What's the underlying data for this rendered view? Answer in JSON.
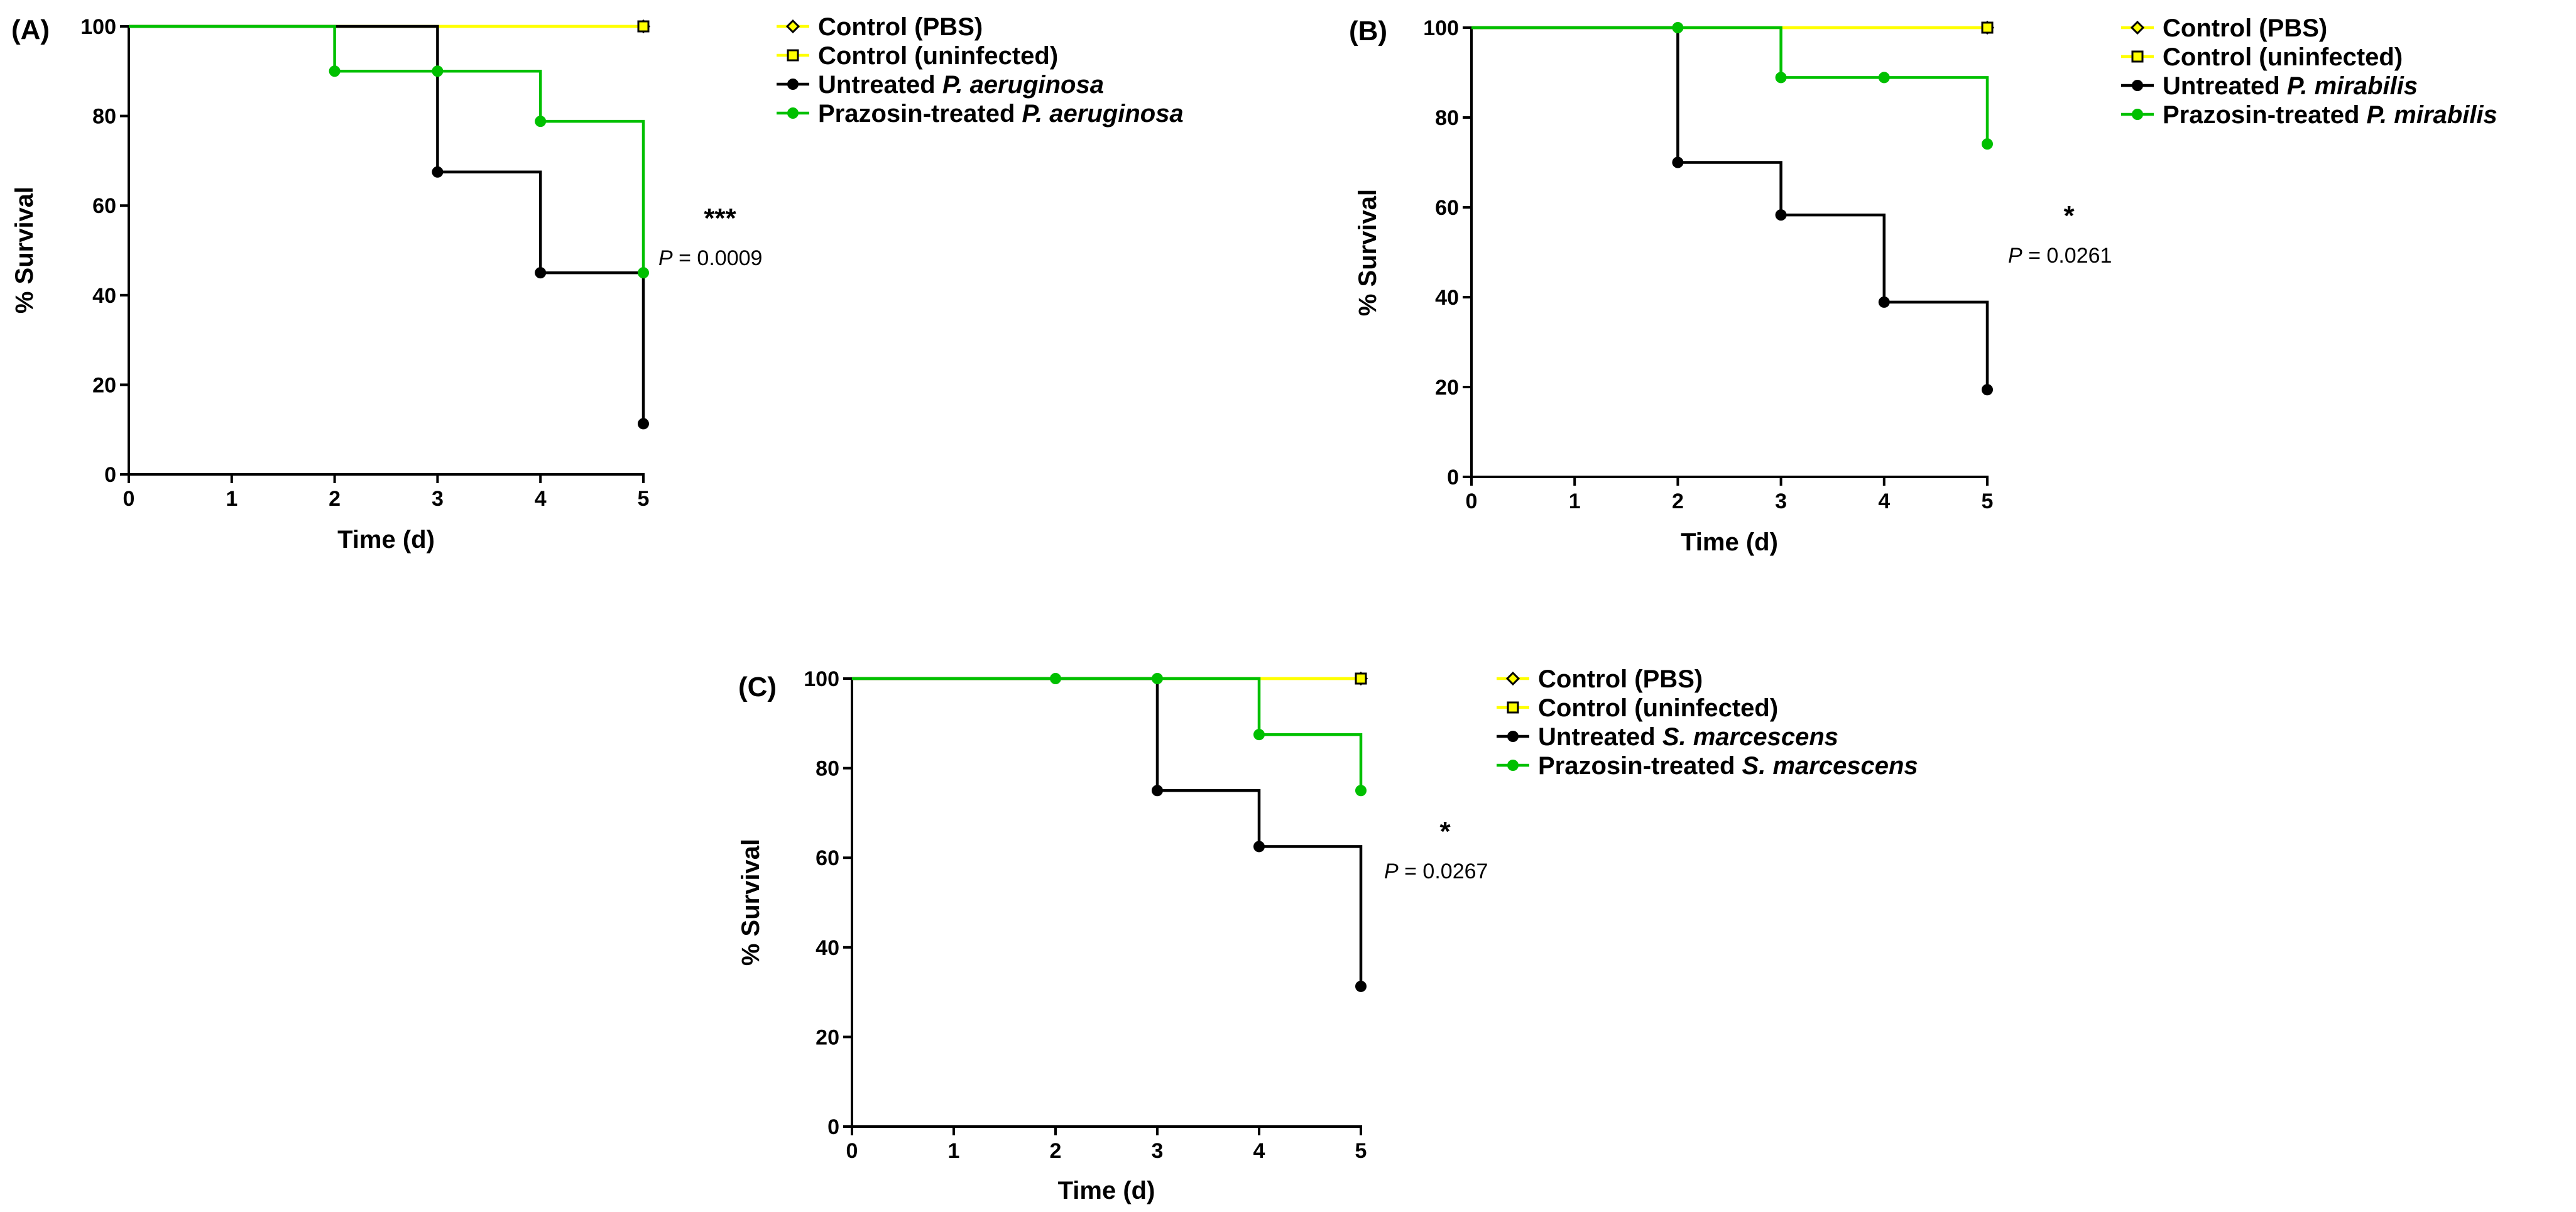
{
  "figure": {
    "colors": {
      "pbs": "#ffff00",
      "uninfected": "#ffff00",
      "untreated": "#000000",
      "prazosin": "#00c000",
      "marker_fill_untreated": "#000000",
      "marker_fill_prazosin": "#00c000"
    }
  },
  "chart_data": [
    {
      "panel": "(A)",
      "type": "line",
      "subtype": "kaplan-meier step",
      "xlabel": "Time (d)",
      "ylabel": "% Survival",
      "xlim": [
        0,
        5
      ],
      "ylim": [
        0,
        100
      ],
      "xticks": [
        "0",
        "1",
        "2",
        "3",
        "4",
        "5"
      ],
      "yticks": [
        "0",
        "20",
        "40",
        "60",
        "80",
        "100"
      ],
      "legend": {
        "pbs": "Control (PBS)",
        "uninfected": "Control (uninfected)",
        "untreated_prefix": "Untreated",
        "prazosin_prefix": "Prazosin-treated",
        "organism": "P. aeruginosa"
      },
      "series": [
        {
          "key": "pbs",
          "name": "Control (PBS)",
          "x": [
            0,
            5
          ],
          "y": [
            100,
            100
          ],
          "markers": [
            5
          ]
        },
        {
          "key": "uninfected",
          "name": "Control (uninfected)",
          "x": [
            0,
            5
          ],
          "y": [
            100,
            100
          ],
          "markers": [
            5
          ]
        },
        {
          "key": "untreated",
          "name": "Untreated P. aeruginosa",
          "x": [
            0,
            3,
            4,
            5
          ],
          "y": [
            100,
            67.5,
            45,
            11.3
          ],
          "markers": [
            1,
            2,
            3
          ]
        },
        {
          "key": "prazosin",
          "name": "Prazosin-treated P. aeruginosa",
          "x": [
            0,
            2,
            3,
            4,
            5
          ],
          "y": [
            100,
            90,
            90,
            78.8,
            45
          ],
          "markers": [
            1,
            2,
            3,
            4
          ]
        }
      ],
      "annotation": {
        "stars": "***",
        "p_label": "P",
        "p_rest": " = 0.0009"
      }
    },
    {
      "panel": "(B)",
      "type": "line",
      "subtype": "kaplan-meier step",
      "xlabel": "Time (d)",
      "ylabel": "% Survival",
      "xlim": [
        0,
        5
      ],
      "ylim": [
        0,
        100
      ],
      "xticks": [
        "0",
        "1",
        "2",
        "3",
        "4",
        "5"
      ],
      "yticks": [
        "0",
        "20",
        "40",
        "60",
        "80",
        "100"
      ],
      "legend": {
        "pbs": "Control (PBS)",
        "uninfected": "Control (uninfected)",
        "untreated_prefix": "Untreated",
        "prazosin_prefix": "Prazosin-treated",
        "organism": "P.  mirabilis"
      },
      "series": [
        {
          "key": "pbs",
          "name": "Control (PBS)",
          "x": [
            0,
            5
          ],
          "y": [
            100,
            100
          ],
          "markers": [
            5
          ]
        },
        {
          "key": "uninfected",
          "name": "Control (uninfected)",
          "x": [
            0,
            5
          ],
          "y": [
            100,
            100
          ],
          "markers": [
            5
          ]
        },
        {
          "key": "untreated",
          "name": "Untreated P. mirabilis",
          "x": [
            0,
            2,
            3,
            4,
            5
          ],
          "y": [
            100,
            70,
            58.3,
            38.9,
            19.4
          ],
          "markers": [
            1,
            2,
            3,
            4
          ]
        },
        {
          "key": "prazosin",
          "name": "Prazosin-treated P. mirabilis",
          "x": [
            0,
            2,
            3,
            4,
            5
          ],
          "y": [
            100,
            100,
            88.9,
            88.9,
            74.1
          ],
          "markers": [
            1,
            2,
            3,
            4
          ]
        }
      ],
      "annotation": {
        "stars": "*",
        "p_label": "P",
        "p_rest": " = 0.0261"
      }
    },
    {
      "panel": "(C)",
      "type": "line",
      "subtype": "kaplan-meier step",
      "xlabel": "Time (d)",
      "ylabel": "% Survival",
      "xlim": [
        0,
        5
      ],
      "ylim": [
        0,
        100
      ],
      "xticks": [
        "0",
        "1",
        "2",
        "3",
        "4",
        "5"
      ],
      "yticks": [
        "0",
        "20",
        "40",
        "60",
        "80",
        "100"
      ],
      "legend": {
        "pbs": "Control (PBS)",
        "uninfected": "Control (uninfected)",
        "untreated_prefix": "Untreated",
        "prazosin_prefix": "Prazosin-treated",
        "organism": "S. marcescens"
      },
      "series": [
        {
          "key": "pbs",
          "name": "Control (PBS)",
          "x": [
            0,
            5
          ],
          "y": [
            100,
            100
          ],
          "markers": [
            5
          ]
        },
        {
          "key": "uninfected",
          "name": "Control (uninfected)",
          "x": [
            0,
            5
          ],
          "y": [
            100,
            100
          ],
          "markers": [
            5
          ]
        },
        {
          "key": "untreated",
          "name": "Untreated S. marcescens",
          "x": [
            0,
            3,
            4,
            5
          ],
          "y": [
            100,
            75,
            62.5,
            31.3
          ],
          "markers": [
            1,
            2,
            3
          ]
        },
        {
          "key": "prazosin",
          "name": "Prazosin-treated S. marcescens",
          "x": [
            0,
            2,
            3,
            4,
            5
          ],
          "y": [
            100,
            100,
            100,
            87.5,
            75
          ],
          "markers": [
            1,
            2,
            3,
            4
          ]
        }
      ],
      "annotation": {
        "stars": "*",
        "p_label": "P",
        "p_rest": " = 0.0267"
      }
    }
  ]
}
